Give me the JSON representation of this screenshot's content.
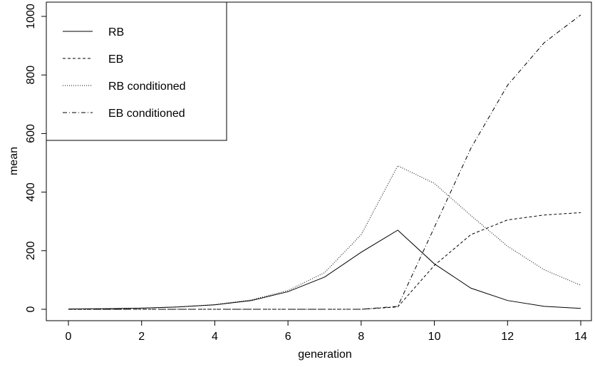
{
  "chart_data": {
    "type": "line",
    "xlabel": "generation",
    "ylabel": "mean",
    "xlim": [
      0,
      14
    ],
    "ylim": [
      0,
      1000
    ],
    "x_ticks": [
      0,
      2,
      4,
      6,
      8,
      10,
      12,
      14
    ],
    "y_ticks": [
      0,
      200,
      400,
      600,
      800,
      1000
    ],
    "x": [
      0,
      1,
      2,
      3,
      4,
      5,
      6,
      7,
      8,
      9,
      10,
      11,
      12,
      13,
      14
    ],
    "legend_position": "top-left",
    "series": [
      {
        "name": "RB",
        "line_style": "solid",
        "values": [
          1,
          2,
          4,
          8,
          15,
          30,
          60,
          110,
          195,
          270,
          155,
          72,
          30,
          10,
          3
        ]
      },
      {
        "name": "EB",
        "line_style": "dashed",
        "values": [
          0,
          0,
          0,
          0,
          0,
          0,
          0,
          0,
          0,
          8,
          150,
          255,
          305,
          322,
          330
        ]
      },
      {
        "name": "RB conditioned",
        "line_style": "dotted",
        "values": [
          1,
          2,
          4,
          8,
          16,
          32,
          64,
          125,
          255,
          490,
          430,
          320,
          215,
          135,
          82
        ]
      },
      {
        "name": "EB conditioned",
        "line_style": "dashdot",
        "values": [
          0,
          0,
          0,
          0,
          0,
          0,
          0,
          0,
          0,
          10,
          280,
          550,
          765,
          910,
          1005
        ]
      }
    ]
  }
}
